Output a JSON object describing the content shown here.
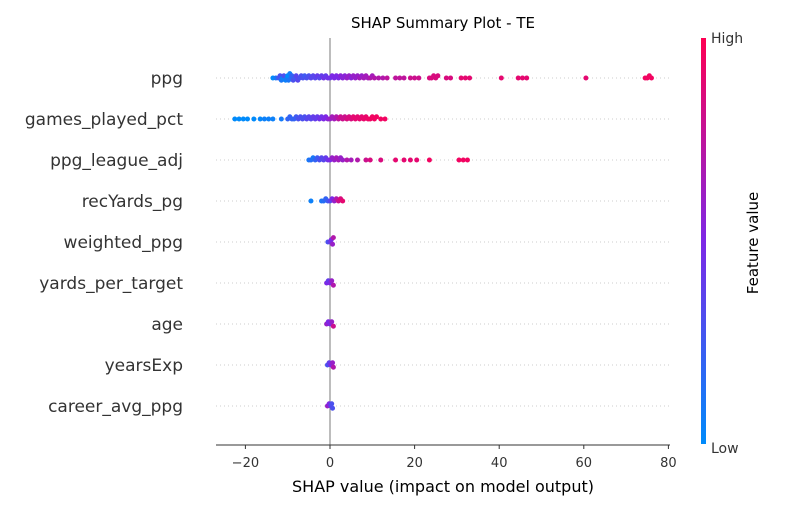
{
  "chart_data": {
    "type": "scatter",
    "title": "SHAP Summary Plot - TE",
    "xlabel": "SHAP value (impact on model output)",
    "ylabel": "",
    "xlim": [
      -27,
      81
    ],
    "xticks": [
      -20,
      0,
      20,
      40,
      60,
      80
    ],
    "xtick_labels": [
      "−20",
      "0",
      "20",
      "40",
      "60",
      "80"
    ],
    "features": [
      "ppg",
      "games_played_pct",
      "ppg_league_adj",
      "recYards_pg",
      "weighted_ppg",
      "yards_per_target",
      "age",
      "yearsExp",
      "career_avg_ppg"
    ],
    "grid": "dotted horizontal row guides",
    "colorbar": {
      "title": "Feature value",
      "high_label": "High",
      "low_label": "Low",
      "low_color": "#008bfb",
      "high_color": "#ff0052"
    },
    "series": [
      {
        "feature": "ppg",
        "points": [
          [
            -13.5,
            0.0
          ],
          [
            -12.8,
            0.1
          ],
          [
            -12.2,
            0.25
          ],
          [
            -11.8,
            0.3
          ],
          [
            -11.5,
            0.1
          ],
          [
            -11.2,
            0.05
          ],
          [
            -10.9,
            0.3
          ],
          [
            -10.5,
            0.05
          ],
          [
            -10.2,
            0.1
          ],
          [
            -10.0,
            0.0
          ],
          [
            -9.8,
            0.1
          ],
          [
            -9.5,
            0.05
          ],
          [
            -9.2,
            0.15
          ],
          [
            -9.0,
            0.2
          ],
          [
            -8.7,
            0.3
          ],
          [
            -8.3,
            0.25
          ],
          [
            -8.0,
            0.35
          ],
          [
            -7.6,
            0.35
          ],
          [
            -7.2,
            0.3
          ],
          [
            -6.8,
            0.3
          ],
          [
            -6.4,
            0.3
          ],
          [
            -6.0,
            0.25
          ],
          [
            -5.5,
            0.3
          ],
          [
            -5.0,
            0.3
          ],
          [
            -4.5,
            0.35
          ],
          [
            -4.0,
            0.35
          ],
          [
            -3.5,
            0.35
          ],
          [
            -3.0,
            0.4
          ],
          [
            -2.5,
            0.35
          ],
          [
            -2.0,
            0.4
          ],
          [
            -1.5,
            0.45
          ],
          [
            -1.0,
            0.4
          ],
          [
            -0.5,
            0.45
          ],
          [
            0.0,
            0.45
          ],
          [
            0.5,
            0.5
          ],
          [
            1.0,
            0.5
          ],
          [
            1.5,
            0.5
          ],
          [
            2.0,
            0.5
          ],
          [
            2.5,
            0.55
          ],
          [
            3.0,
            0.55
          ],
          [
            3.5,
            0.55
          ],
          [
            4.0,
            0.6
          ],
          [
            4.5,
            0.6
          ],
          [
            5.0,
            0.55
          ],
          [
            5.5,
            0.6
          ],
          [
            6.0,
            0.6
          ],
          [
            6.5,
            0.6
          ],
          [
            7.0,
            0.65
          ],
          [
            7.5,
            0.6
          ],
          [
            8.0,
            0.65
          ],
          [
            8.5,
            0.65
          ],
          [
            9.0,
            0.65
          ],
          [
            9.5,
            0.7
          ],
          [
            10.0,
            0.65
          ],
          [
            10.5,
            0.7
          ],
          [
            11.5,
            0.7
          ],
          [
            12.5,
            0.7
          ],
          [
            13.5,
            0.75
          ],
          [
            15.5,
            0.75
          ],
          [
            16.5,
            0.75
          ],
          [
            17.5,
            0.75
          ],
          [
            19.0,
            0.8
          ],
          [
            20.0,
            0.8
          ],
          [
            21.0,
            0.8
          ],
          [
            23.5,
            0.85
          ],
          [
            24.0,
            0.85
          ],
          [
            24.5,
            0.85
          ],
          [
            25.0,
            0.85
          ],
          [
            25.5,
            0.85
          ],
          [
            27.5,
            0.85
          ],
          [
            28.5,
            0.85
          ],
          [
            31.0,
            0.9
          ],
          [
            32.0,
            0.9
          ],
          [
            33.0,
            0.9
          ],
          [
            40.5,
            0.9
          ],
          [
            44.5,
            0.9
          ],
          [
            45.5,
            0.9
          ],
          [
            46.5,
            0.9
          ],
          [
            60.5,
            0.9
          ],
          [
            74.5,
            0.95
          ],
          [
            75.0,
            0.95
          ],
          [
            75.5,
            0.95
          ],
          [
            76.0,
            0.95
          ]
        ]
      },
      {
        "feature": "games_played_pct",
        "points": [
          [
            -22.5,
            0.0
          ],
          [
            -21.5,
            0.0
          ],
          [
            -20.5,
            0.0
          ],
          [
            -19.5,
            0.0
          ],
          [
            -18.0,
            0.0
          ],
          [
            -16.5,
            0.02
          ],
          [
            -15.5,
            0.05
          ],
          [
            -14.5,
            0.05
          ],
          [
            -13.5,
            0.05
          ],
          [
            -11.5,
            0.08
          ],
          [
            -10.0,
            0.2
          ],
          [
            -9.5,
            0.2
          ],
          [
            -9.0,
            0.2
          ],
          [
            -8.5,
            0.2
          ],
          [
            -8.0,
            0.25
          ],
          [
            -7.5,
            0.3
          ],
          [
            -7.0,
            0.3
          ],
          [
            -6.5,
            0.3
          ],
          [
            -6.0,
            0.3
          ],
          [
            -5.5,
            0.35
          ],
          [
            -5.0,
            0.35
          ],
          [
            -4.5,
            0.35
          ],
          [
            -4.0,
            0.4
          ],
          [
            -3.5,
            0.4
          ],
          [
            -3.0,
            0.4
          ],
          [
            -2.5,
            0.45
          ],
          [
            -2.0,
            0.45
          ],
          [
            -1.5,
            0.5
          ],
          [
            -1.0,
            0.5
          ],
          [
            -0.5,
            0.55
          ],
          [
            0.0,
            0.6
          ],
          [
            0.5,
            0.65
          ],
          [
            1.0,
            0.65
          ],
          [
            1.5,
            0.7
          ],
          [
            2.0,
            0.75
          ],
          [
            2.5,
            0.8
          ],
          [
            3.0,
            0.8
          ],
          [
            3.5,
            0.8
          ],
          [
            4.0,
            0.85
          ],
          [
            4.5,
            0.85
          ],
          [
            5.0,
            0.85
          ],
          [
            5.5,
            0.9
          ],
          [
            6.0,
            0.9
          ],
          [
            6.5,
            0.9
          ],
          [
            7.0,
            0.9
          ],
          [
            7.5,
            0.9
          ],
          [
            8.0,
            0.92
          ],
          [
            8.5,
            0.92
          ],
          [
            9.0,
            0.93
          ],
          [
            9.5,
            0.94
          ],
          [
            10.0,
            0.95
          ],
          [
            10.5,
            0.95
          ],
          [
            11.0,
            0.95
          ],
          [
            12.0,
            0.95
          ],
          [
            13.0,
            0.95
          ]
        ]
      },
      {
        "feature": "ppg_league_adj",
        "points": [
          [
            -5.0,
            0.1
          ],
          [
            -4.5,
            0.15
          ],
          [
            -4.0,
            0.1
          ],
          [
            -3.5,
            0.2
          ],
          [
            -3.0,
            0.25
          ],
          [
            -2.5,
            0.3
          ],
          [
            -2.0,
            0.35
          ],
          [
            -1.5,
            0.35
          ],
          [
            -1.0,
            0.4
          ],
          [
            -0.5,
            0.45
          ],
          [
            0.0,
            0.5
          ],
          [
            0.5,
            0.6
          ],
          [
            1.0,
            0.6
          ],
          [
            1.5,
            0.65
          ],
          [
            2.0,
            0.65
          ],
          [
            2.5,
            0.6
          ],
          [
            3.0,
            0.6
          ],
          [
            4.0,
            0.7
          ],
          [
            5.0,
            0.65
          ],
          [
            6.5,
            0.7
          ],
          [
            8.5,
            0.8
          ],
          [
            9.5,
            0.85
          ],
          [
            12.0,
            0.85
          ],
          [
            15.5,
            0.9
          ],
          [
            17.5,
            0.9
          ],
          [
            19.0,
            0.9
          ],
          [
            20.5,
            0.9
          ],
          [
            23.5,
            0.95
          ],
          [
            30.5,
            0.95
          ],
          [
            31.5,
            0.95
          ],
          [
            32.5,
            0.95
          ]
        ]
      },
      {
        "feature": "recYards_pg",
        "points": [
          [
            -4.5,
            0.05
          ],
          [
            -2.0,
            0.1
          ],
          [
            -1.5,
            0.15
          ],
          [
            -1.0,
            0.2
          ],
          [
            -0.5,
            0.25
          ],
          [
            0.0,
            0.35
          ],
          [
            0.5,
            0.5
          ],
          [
            1.0,
            0.6
          ],
          [
            1.5,
            0.7
          ],
          [
            2.0,
            0.8
          ],
          [
            2.5,
            0.85
          ],
          [
            3.0,
            0.9
          ]
        ]
      },
      {
        "feature": "weighted_ppg",
        "points": [
          [
            -0.5,
            0.3
          ],
          [
            0.0,
            0.4
          ],
          [
            0.3,
            0.5
          ],
          [
            0.6,
            0.6
          ],
          [
            0.8,
            0.7
          ]
        ]
      },
      {
        "feature": "yards_per_target",
        "points": [
          [
            -0.8,
            0.5
          ],
          [
            -0.4,
            0.4
          ],
          [
            0.0,
            0.5
          ],
          [
            0.4,
            0.6
          ],
          [
            0.8,
            0.7
          ]
        ]
      },
      {
        "feature": "age",
        "points": [
          [
            -0.8,
            0.6
          ],
          [
            -0.4,
            0.5
          ],
          [
            0.0,
            0.5
          ],
          [
            0.4,
            0.6
          ],
          [
            0.8,
            0.8
          ]
        ]
      },
      {
        "feature": "yearsExp",
        "points": [
          [
            -0.6,
            0.3
          ],
          [
            -0.2,
            0.4
          ],
          [
            0.2,
            0.5
          ],
          [
            0.6,
            0.6
          ],
          [
            0.8,
            0.7
          ]
        ]
      },
      {
        "feature": "career_avg_ppg",
        "points": [
          [
            -0.6,
            0.6
          ],
          [
            -0.2,
            0.5
          ],
          [
            0.2,
            0.4
          ],
          [
            0.4,
            0.3
          ],
          [
            0.6,
            0.3
          ]
        ]
      }
    ]
  }
}
